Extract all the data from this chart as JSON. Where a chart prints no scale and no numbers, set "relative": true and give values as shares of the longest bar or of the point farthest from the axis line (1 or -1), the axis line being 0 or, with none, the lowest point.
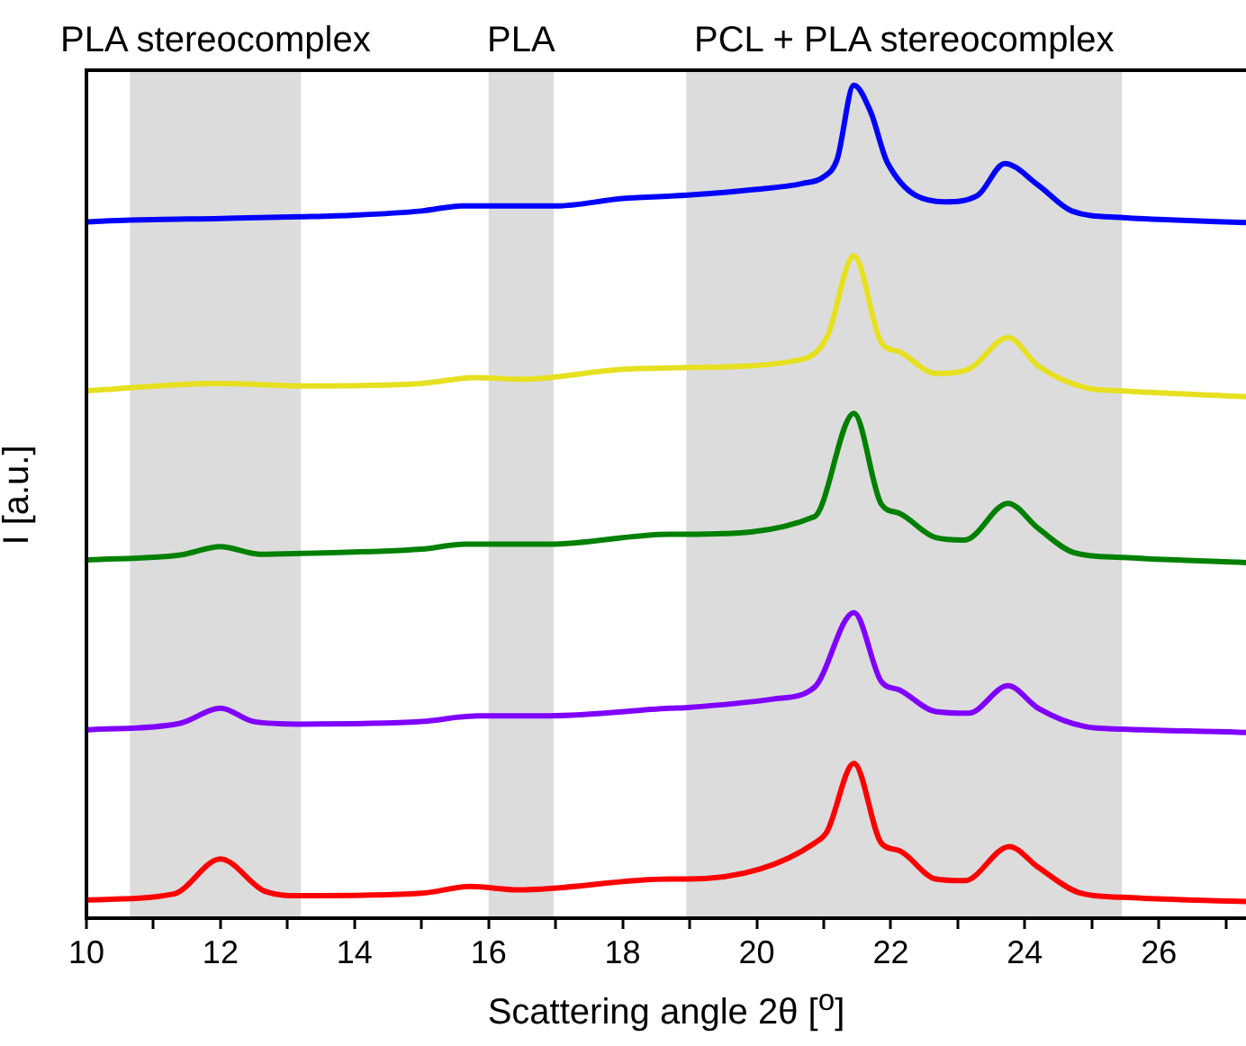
{
  "chart_data": {
    "type": "line",
    "relative": true,
    "xlabel": "Scattering angle 2θ [$^{o}$]",
    "ylabel": "I [a.u.]",
    "xlim": [
      10,
      27.3
    ],
    "xticks": [
      10,
      {
        "value": 11,
        "label": null
      },
      12,
      {
        "value": 13,
        "label": null
      },
      14,
      {
        "value": 15,
        "label": null
      },
      16,
      {
        "value": 17,
        "label": null
      },
      18,
      {
        "value": 19,
        "label": null
      },
      20,
      {
        "value": 21,
        "label": null
      },
      22,
      {
        "value": 23,
        "label": null
      },
      24,
      {
        "value": 25,
        "label": null
      },
      26,
      {
        "value": 27,
        "label": null
      }
    ],
    "grid": false,
    "legend": false,
    "marker": "none",
    "line_style": "solid",
    "bands": [
      {
        "axis": "x",
        "from": 10.65,
        "to": 13.2,
        "label": "PLA stereocomplex",
        "color": "#dcdcdc"
      },
      {
        "axis": "x",
        "from": 16,
        "to": 16.97,
        "label": "PLA",
        "color": "#dcdcdc"
      },
      {
        "axis": "x",
        "from": 18.95,
        "to": 25.45,
        "label": "PCL + PLA stereocomplex",
        "color": "#dcdcdc"
      }
    ],
    "series": [
      {
        "color": "#0000ff",
        "x": [
          10,
          10.65,
          12,
          13.2,
          14,
          15,
          15.6,
          16,
          17,
          18,
          18.97,
          20,
          20.68,
          21,
          21.2,
          21.45,
          21.7,
          21.95,
          22.8,
          23.3,
          23.7,
          24.2,
          24.7,
          25.46,
          26,
          27.3
        ],
        "values": [
          0.836,
          0.838,
          0.84,
          0.842,
          0.844,
          0.849,
          0.855,
          0.855,
          0.855,
          0.864,
          0.868,
          0.875,
          0.882,
          0.89,
          0.911,
          1,
          0.968,
          0.907,
          0.86,
          0.868,
          0.906,
          0.88,
          0.849,
          0.841,
          0.839,
          0.835
        ]
      },
      {
        "color": "#e6e020",
        "x": [
          10,
          11.95,
          13.2,
          15,
          15.8,
          16.5,
          18,
          18.97,
          20.68,
          21.05,
          21.45,
          21.86,
          22.13,
          22.67,
          23.16,
          23.75,
          24.2,
          24.9,
          25.46,
          27.3
        ],
        "values": [
          0.633,
          0.642,
          0.639,
          0.642,
          0.649,
          0.647,
          0.659,
          0.661,
          0.671,
          0.698,
          0.795,
          0.691,
          0.68,
          0.654,
          0.659,
          0.697,
          0.663,
          0.637,
          0.633,
          0.626
        ]
      },
      {
        "color": "#008000",
        "x": [
          10,
          11.4,
          12,
          12.58,
          13.2,
          15,
          15.64,
          16.9,
          18.7,
          18.97,
          20.86,
          21.45,
          21.86,
          22.13,
          22.67,
          23.1,
          23.75,
          24.2,
          24.73,
          25.46,
          27.3
        ],
        "values": [
          0.43,
          0.436,
          0.446,
          0.437,
          0.438,
          0.443,
          0.449,
          0.449,
          0.461,
          0.461,
          0.482,
          0.606,
          0.497,
          0.486,
          0.457,
          0.454,
          0.498,
          0.468,
          0.439,
          0.433,
          0.427
        ]
      },
      {
        "color": "#8000ff",
        "x": [
          10,
          11.4,
          12,
          12.5,
          13.2,
          15,
          15.84,
          16.9,
          18.7,
          18.97,
          20.24,
          20.86,
          21.45,
          21.86,
          22.13,
          22.67,
          23.16,
          23.75,
          24.2,
          24.9,
          25.46,
          27.3
        ],
        "values": [
          0.226,
          0.234,
          0.252,
          0.236,
          0.233,
          0.236,
          0.243,
          0.243,
          0.252,
          0.253,
          0.263,
          0.277,
          0.367,
          0.284,
          0.274,
          0.248,
          0.246,
          0.279,
          0.252,
          0.23,
          0.227,
          0.223
        ]
      },
      {
        "color": "#ff0000",
        "x": [
          10,
          11.3,
          12,
          12.67,
          13.2,
          15,
          15.73,
          16.45,
          18.7,
          18.97,
          20.05,
          20.86,
          21.05,
          21.45,
          21.86,
          22.13,
          22.67,
          23.1,
          23.77,
          24.2,
          24.83,
          25.46,
          27.3
        ],
        "values": [
          0.022,
          0.029,
          0.071,
          0.032,
          0.027,
          0.03,
          0.038,
          0.034,
          0.047,
          0.047,
          0.059,
          0.09,
          0.104,
          0.186,
          0.09,
          0.081,
          0.047,
          0.045,
          0.086,
          0.061,
          0.03,
          0.025,
          0.02
        ]
      }
    ]
  }
}
